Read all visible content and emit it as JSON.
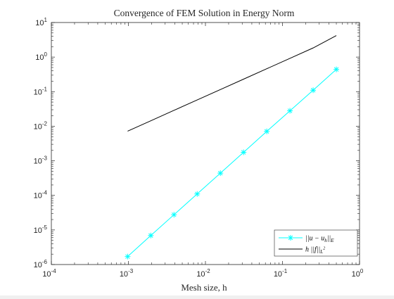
{
  "chart_data": {
    "type": "line",
    "title": "Convergence of FEM Solution in Energy Norm",
    "xlabel": "Mesh size, h",
    "ylabel": "",
    "xscale": "log",
    "yscale": "log",
    "xlim": [
      0.0001,
      1
    ],
    "ylim": [
      1e-06,
      10
    ],
    "x_ticks": [
      {
        "value": 0.0001,
        "base": "10",
        "exp": "-4"
      },
      {
        "value": 0.001,
        "base": "10",
        "exp": "-3"
      },
      {
        "value": 0.01,
        "base": "10",
        "exp": "-2"
      },
      {
        "value": 0.1,
        "base": "10",
        "exp": "-1"
      },
      {
        "value": 1,
        "base": "10",
        "exp": "0"
      }
    ],
    "y_ticks": [
      {
        "value": 1e-06,
        "base": "10",
        "exp": "-6"
      },
      {
        "value": 1e-05,
        "base": "10",
        "exp": "-5"
      },
      {
        "value": 0.0001,
        "base": "10",
        "exp": "-4"
      },
      {
        "value": 0.001,
        "base": "10",
        "exp": "-3"
      },
      {
        "value": 0.01,
        "base": "10",
        "exp": "-2"
      },
      {
        "value": 0.1,
        "base": "10",
        "exp": "-1"
      },
      {
        "value": 1,
        "base": "10",
        "exp": "0"
      },
      {
        "value": 10,
        "base": "10",
        "exp": "1"
      }
    ],
    "grid": false,
    "legend_position": "bottom-right",
    "series": [
      {
        "name": "||u - u_h||_E",
        "legend_label": {
          "main": "||u − u",
          "sub1": "h",
          "mid": "||",
          "sub2": "E"
        },
        "color": "#00ffff",
        "marker": "asterisk",
        "x": [
          0.000977,
          0.001953,
          0.003906,
          0.007813,
          0.015625,
          0.03125,
          0.0625,
          0.125,
          0.25,
          0.5
        ],
        "y": [
          1.7e-06,
          6.9e-06,
          2.76e-05,
          0.00011,
          0.00044,
          0.00176,
          0.0071,
          0.028,
          0.11,
          0.44
        ]
      },
      {
        "name": "h ||f||_{L^2}",
        "legend_label": {
          "main": "h ||f||",
          "sub1": "L",
          "sup": "2"
        },
        "color": "#000000",
        "marker": "none",
        "x": [
          0.000977,
          0.001953,
          0.003906,
          0.007813,
          0.015625,
          0.03125,
          0.0625,
          0.125,
          0.25,
          0.5
        ],
        "y": [
          0.0072,
          0.0144,
          0.0288,
          0.0576,
          0.115,
          0.23,
          0.46,
          0.92,
          1.84,
          4.2
        ]
      }
    ]
  }
}
